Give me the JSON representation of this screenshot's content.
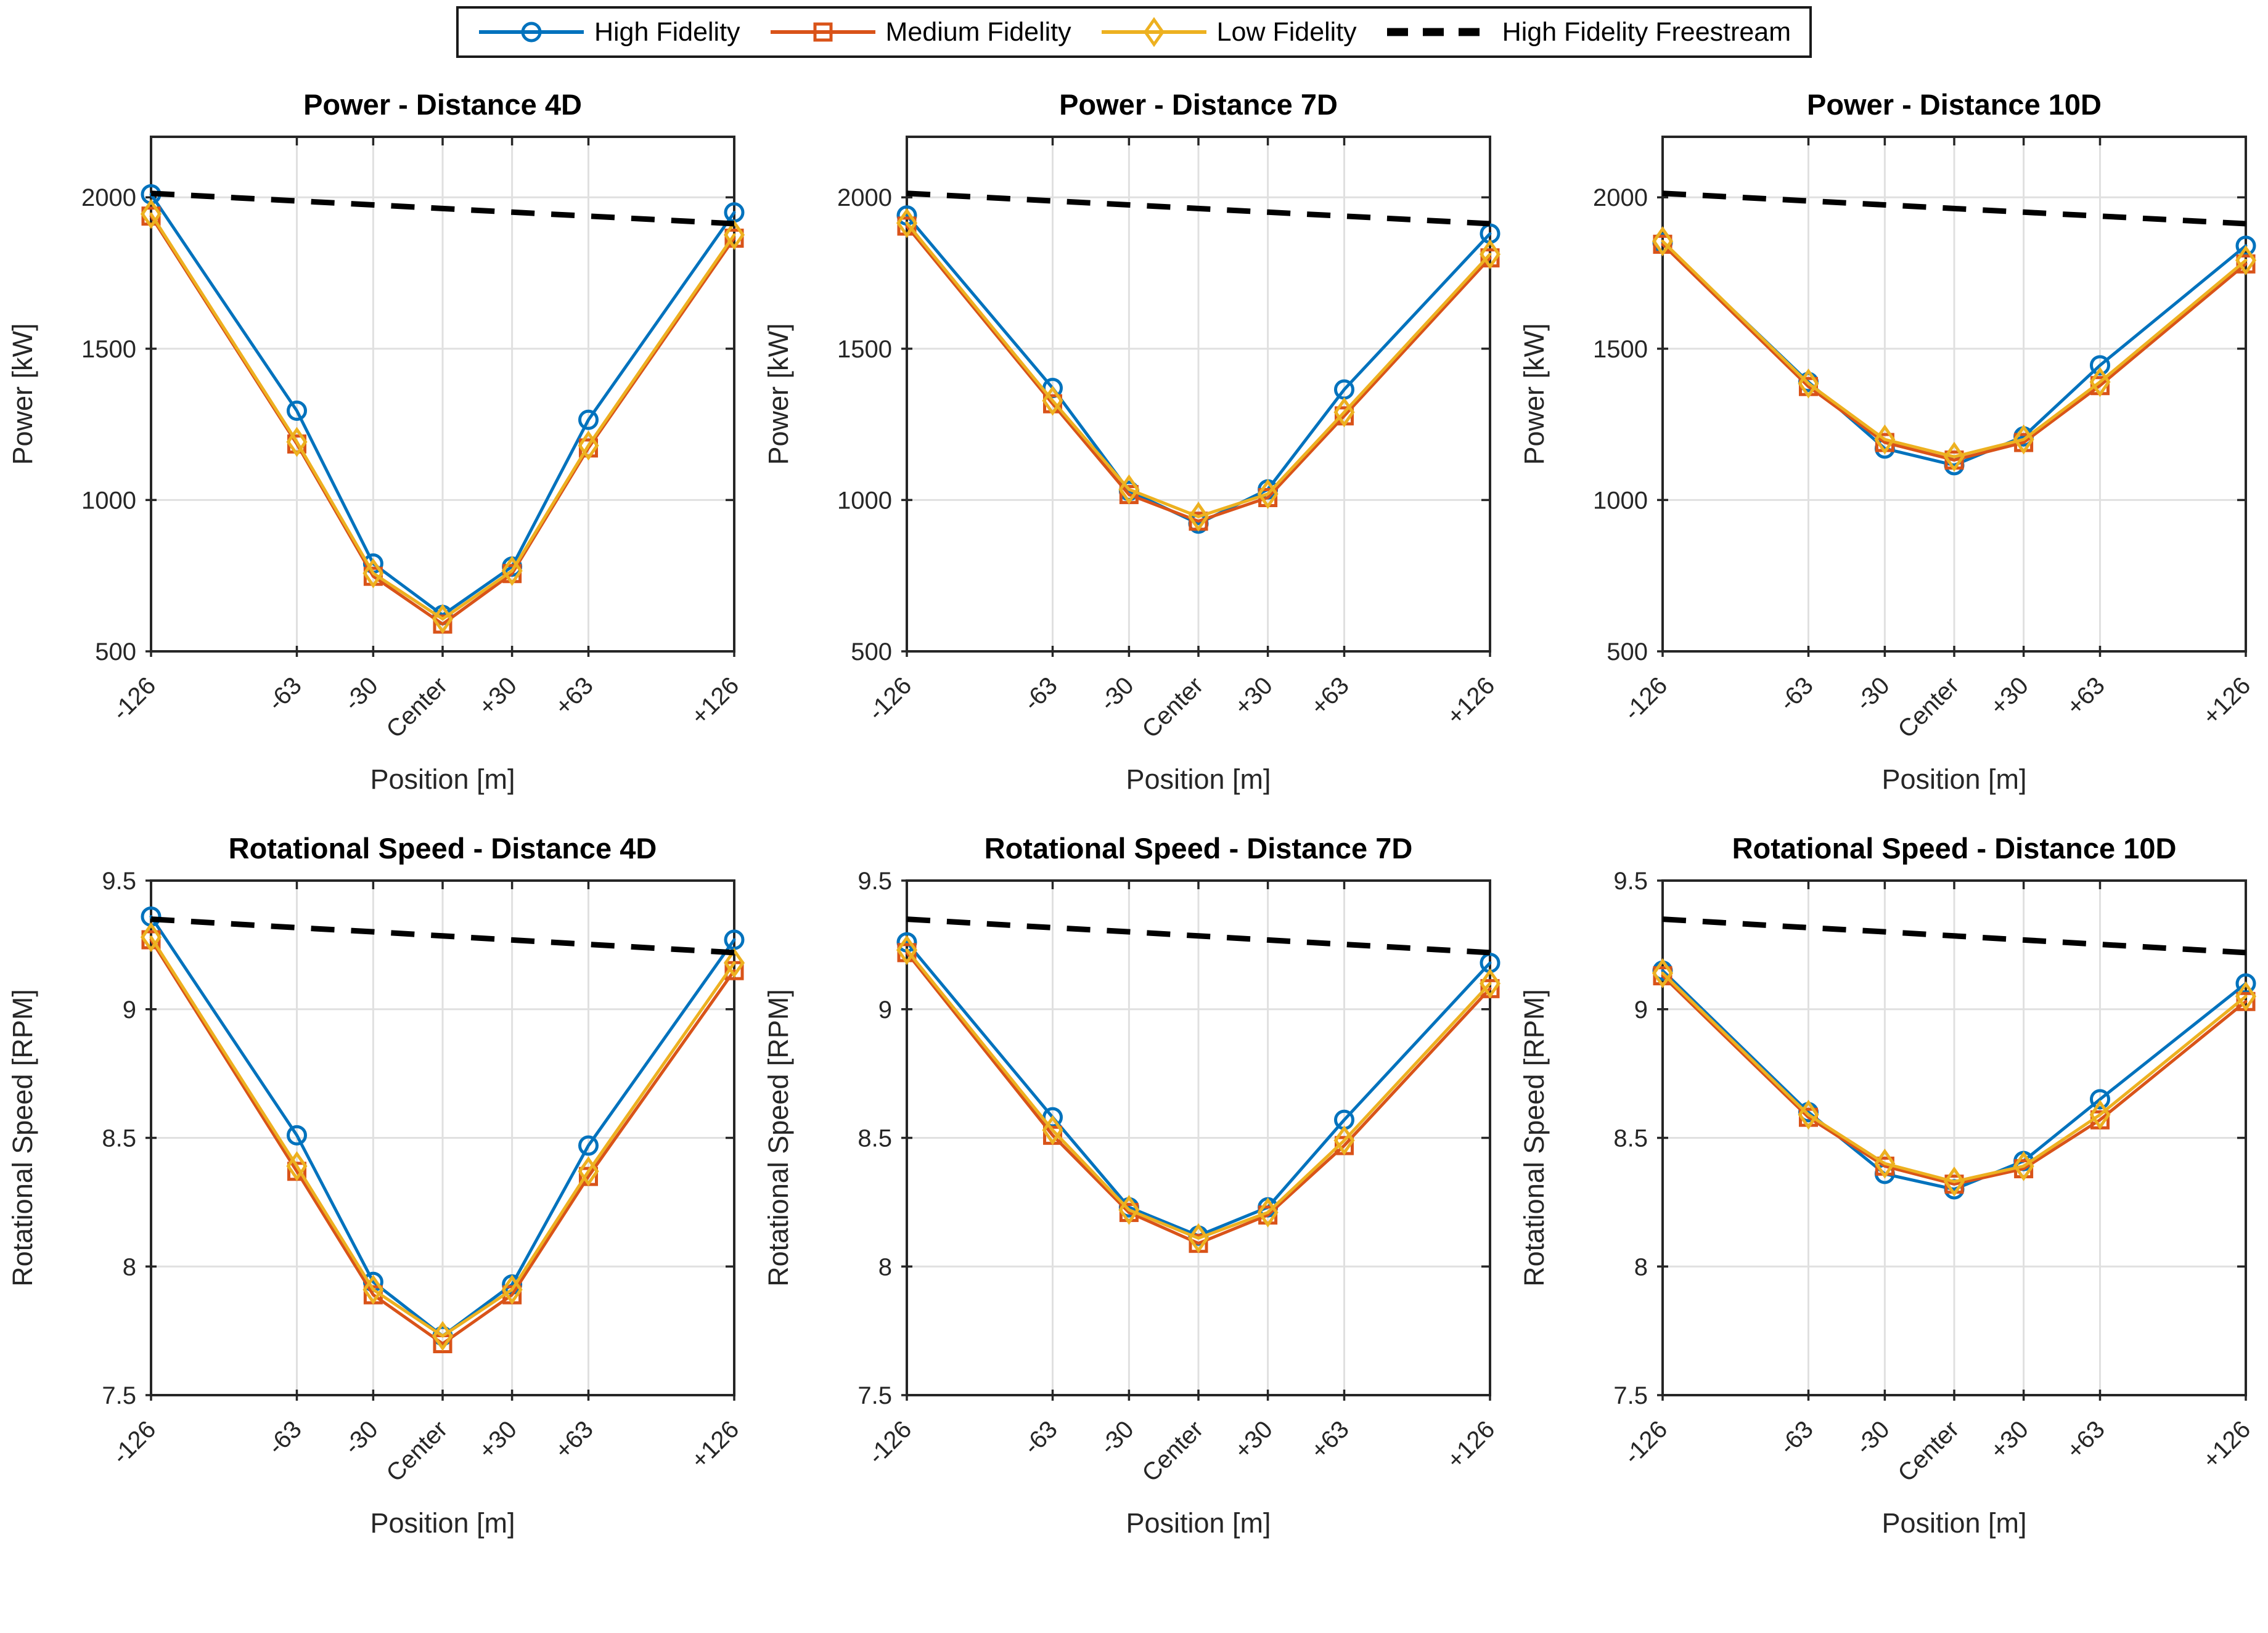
{
  "figure": {
    "background": "#ffffff",
    "axis_color": "#262626",
    "grid_color": "#e0e0e0",
    "tick_label_color": "#262626"
  },
  "legend": {
    "position": "top-center",
    "border_color": "#1a1a1a",
    "entries": [
      {
        "label": "High Fidelity",
        "color": "#0072BD",
        "marker": "circle",
        "line": "solid"
      },
      {
        "label": "Medium Fidelity",
        "color": "#D95319",
        "marker": "square",
        "line": "solid"
      },
      {
        "label": "Low Fidelity",
        "color": "#EDB120",
        "marker": "diamond",
        "line": "solid"
      },
      {
        "label": "High Fidelity Freestream",
        "color": "#000000",
        "marker": "none",
        "line": "dashed"
      }
    ]
  },
  "chart_data": [
    {
      "id": "power-4d",
      "type": "line",
      "title": "Power - Distance 4D",
      "xlabel": "Position [m]",
      "ylabel": "Power [kW]",
      "categories": [
        "-126",
        "-63",
        "-30",
        "Center",
        "+30",
        "+63",
        "+126"
      ],
      "x_values": [
        -126,
        -63,
        -30,
        0,
        30,
        63,
        126
      ],
      "xlim": [
        -126,
        126
      ],
      "ylim": [
        500,
        2200
      ],
      "yticks": [
        500,
        1000,
        1500,
        2000
      ],
      "grid": true,
      "series": [
        {
          "name": "High Fidelity",
          "values": [
            2010,
            1295,
            790,
            620,
            780,
            1265,
            1950
          ]
        },
        {
          "name": "Medium Fidelity",
          "values": [
            1938,
            1185,
            748,
            590,
            757,
            1172,
            1865
          ]
        },
        {
          "name": "Low Fidelity",
          "values": [
            1945,
            1192,
            758,
            607,
            766,
            1180,
            1876
          ]
        },
        {
          "name": "High Fidelity Freestream",
          "values": [
            2013,
            1988,
            1975,
            1963,
            1951,
            1938,
            1913
          ]
        }
      ]
    },
    {
      "id": "power-7d",
      "type": "line",
      "title": "Power - Distance 7D",
      "xlabel": "Position [m]",
      "ylabel": "Power [kW]",
      "categories": [
        "-126",
        "-63",
        "-30",
        "Center",
        "+30",
        "+63",
        "+126"
      ],
      "x_values": [
        -126,
        -63,
        -30,
        0,
        30,
        63,
        126
      ],
      "xlim": [
        -126,
        126
      ],
      "ylim": [
        500,
        2200
      ],
      "yticks": [
        500,
        1000,
        1500,
        2000
      ],
      "grid": true,
      "series": [
        {
          "name": "High Fidelity",
          "values": [
            1940,
            1370,
            1030,
            922,
            1035,
            1365,
            1880
          ]
        },
        {
          "name": "Medium Fidelity",
          "values": [
            1905,
            1318,
            1018,
            930,
            1008,
            1278,
            1800
          ]
        },
        {
          "name": "Low Fidelity",
          "values": [
            1915,
            1328,
            1035,
            945,
            1020,
            1290,
            1812
          ]
        },
        {
          "name": "High Fidelity Freestream",
          "values": [
            2013,
            1988,
            1975,
            1963,
            1951,
            1938,
            1913
          ]
        }
      ]
    },
    {
      "id": "power-10d",
      "type": "line",
      "title": "Power - Distance 10D",
      "xlabel": "Position [m]",
      "ylabel": "Power [kW]",
      "categories": [
        "-126",
        "-63",
        "-30",
        "Center",
        "+30",
        "+63",
        "+126"
      ],
      "x_values": [
        -126,
        -63,
        -30,
        0,
        30,
        63,
        126
      ],
      "xlim": [
        -126,
        126
      ],
      "ylim": [
        500,
        2200
      ],
      "yticks": [
        500,
        1000,
        1500,
        2000
      ],
      "grid": true,
      "series": [
        {
          "name": "High Fidelity",
          "values": [
            1850,
            1390,
            1170,
            1115,
            1210,
            1445,
            1840
          ]
        },
        {
          "name": "Medium Fidelity",
          "values": [
            1845,
            1375,
            1190,
            1132,
            1190,
            1378,
            1780
          ]
        },
        {
          "name": "Low Fidelity",
          "values": [
            1855,
            1385,
            1200,
            1143,
            1200,
            1390,
            1792
          ]
        },
        {
          "name": "High Fidelity Freestream",
          "values": [
            2013,
            1988,
            1975,
            1963,
            1951,
            1938,
            1913
          ]
        }
      ]
    },
    {
      "id": "rpm-4d",
      "type": "line",
      "title": "Rotational Speed - Distance 4D",
      "xlabel": "Position [m]",
      "ylabel": "Rotational Speed [RPM]",
      "categories": [
        "-126",
        "-63",
        "-30",
        "Center",
        "+30",
        "+63",
        "+126"
      ],
      "x_values": [
        -126,
        -63,
        -30,
        0,
        30,
        63,
        126
      ],
      "xlim": [
        -126,
        126
      ],
      "ylim": [
        7.5,
        9.5
      ],
      "yticks": [
        7.5,
        8,
        8.5,
        9,
        9.5
      ],
      "grid": true,
      "series": [
        {
          "name": "High Fidelity",
          "values": [
            9.36,
            8.51,
            7.94,
            7.73,
            7.93,
            8.47,
            9.27
          ]
        },
        {
          "name": "Medium Fidelity",
          "values": [
            9.27,
            8.37,
            7.89,
            7.7,
            7.89,
            8.35,
            9.15
          ]
        },
        {
          "name": "Low Fidelity",
          "values": [
            9.28,
            8.39,
            7.91,
            7.73,
            7.91,
            8.37,
            9.18
          ]
        },
        {
          "name": "High Fidelity Freestream",
          "values": [
            9.35,
            9.317,
            9.301,
            9.285,
            9.269,
            9.252,
            9.22
          ]
        }
      ]
    },
    {
      "id": "rpm-7d",
      "type": "line",
      "title": "Rotational Speed - Distance 7D",
      "xlabel": "Position [m]",
      "ylabel": "Rotational Speed [RPM]",
      "categories": [
        "-126",
        "-63",
        "-30",
        "Center",
        "+30",
        "+63",
        "+126"
      ],
      "x_values": [
        -126,
        -63,
        -30,
        0,
        30,
        63,
        126
      ],
      "xlim": [
        -126,
        126
      ],
      "ylim": [
        7.5,
        9.5
      ],
      "yticks": [
        7.5,
        8,
        8.5,
        9,
        9.5
      ],
      "grid": true,
      "series": [
        {
          "name": "High Fidelity",
          "values": [
            9.26,
            8.58,
            8.23,
            8.12,
            8.23,
            8.57,
            9.18
          ]
        },
        {
          "name": "Medium Fidelity",
          "values": [
            9.22,
            8.51,
            8.21,
            8.09,
            8.2,
            8.47,
            9.08
          ]
        },
        {
          "name": "Low Fidelity",
          "values": [
            9.23,
            8.53,
            8.22,
            8.11,
            8.21,
            8.49,
            9.1
          ]
        },
        {
          "name": "High Fidelity Freestream",
          "values": [
            9.35,
            9.317,
            9.301,
            9.285,
            9.269,
            9.252,
            9.22
          ]
        }
      ]
    },
    {
      "id": "rpm-10d",
      "type": "line",
      "title": "Rotational Speed - Distance 10D",
      "xlabel": "Position [m]",
      "ylabel": "Rotational Speed [RPM]",
      "categories": [
        "-126",
        "-63",
        "-30",
        "Center",
        "+30",
        "+63",
        "+126"
      ],
      "x_values": [
        -126,
        -63,
        -30,
        0,
        30,
        63,
        126
      ],
      "xlim": [
        -126,
        126
      ],
      "ylim": [
        7.5,
        9.5
      ],
      "yticks": [
        7.5,
        8,
        8.5,
        9,
        9.5
      ],
      "grid": true,
      "series": [
        {
          "name": "High Fidelity",
          "values": [
            9.15,
            8.6,
            8.36,
            8.3,
            8.41,
            8.65,
            9.1
          ]
        },
        {
          "name": "Medium Fidelity",
          "values": [
            9.13,
            8.58,
            8.39,
            8.32,
            8.38,
            8.57,
            9.03
          ]
        },
        {
          "name": "Low Fidelity",
          "values": [
            9.14,
            8.59,
            8.4,
            8.33,
            8.39,
            8.59,
            9.05
          ]
        },
        {
          "name": "High Fidelity Freestream",
          "values": [
            9.35,
            9.317,
            9.301,
            9.285,
            9.269,
            9.252,
            9.22
          ]
        }
      ]
    }
  ]
}
